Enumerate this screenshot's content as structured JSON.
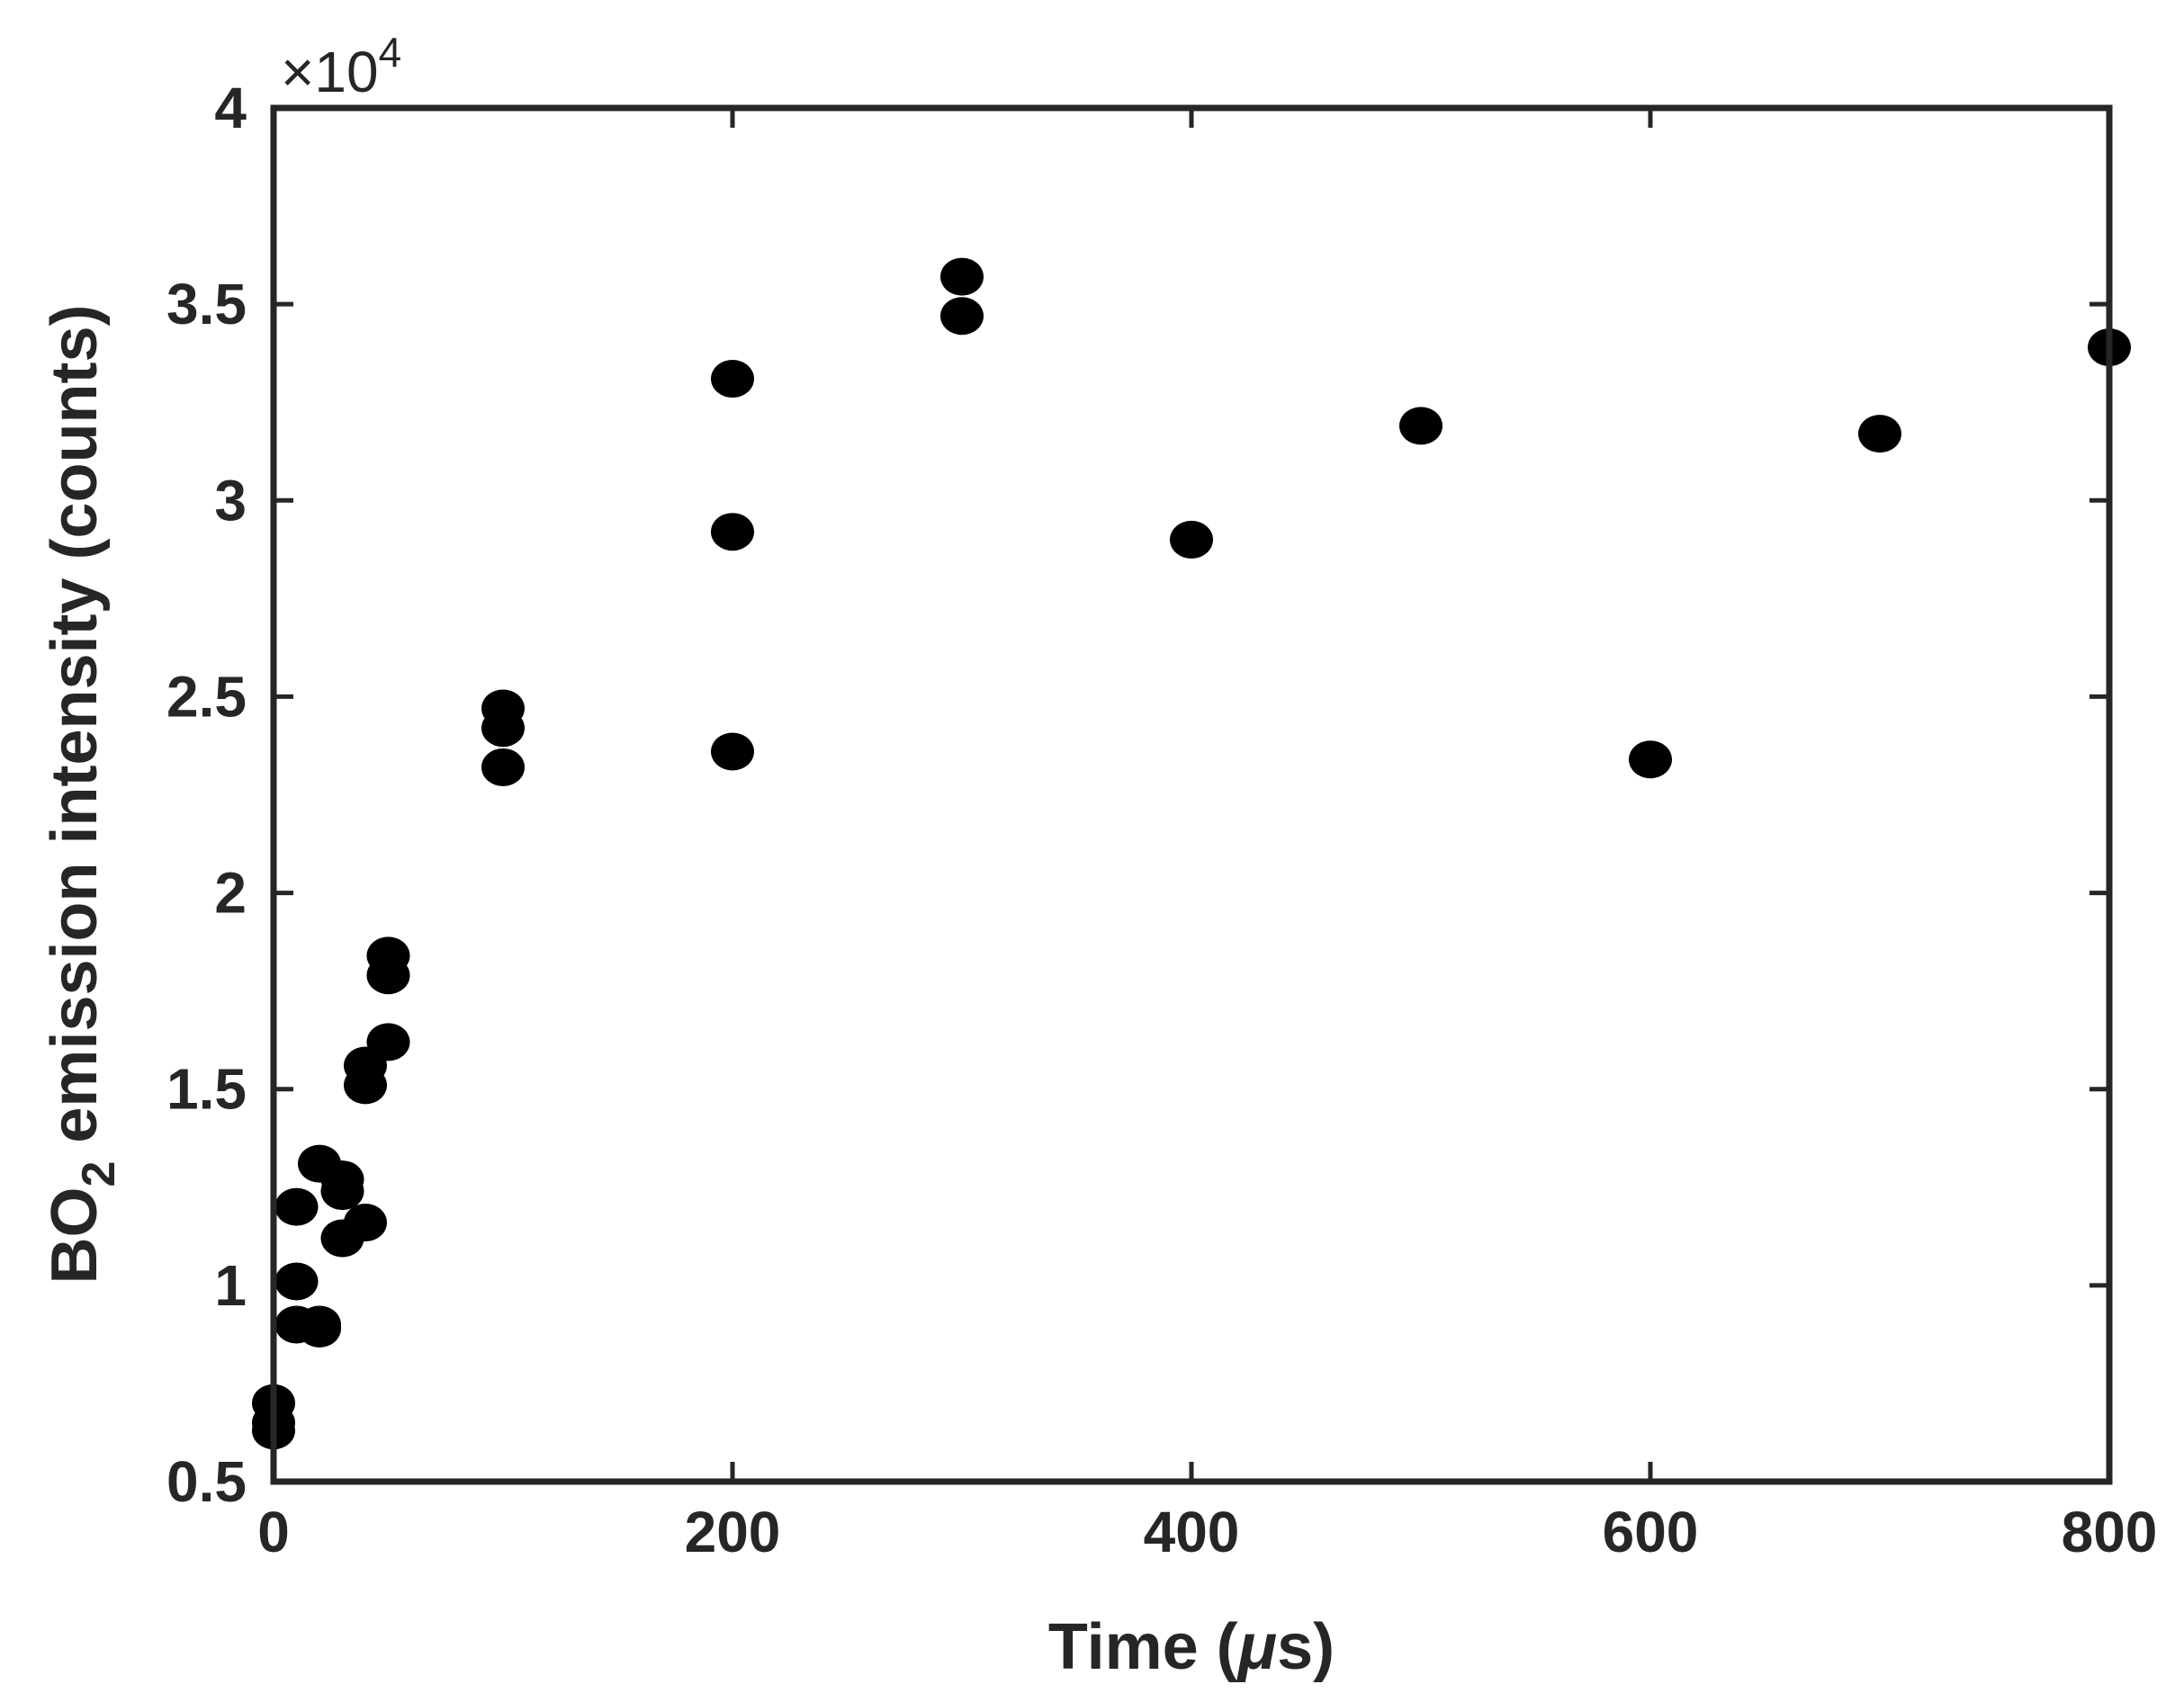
{
  "chart_data": {
    "type": "scatter",
    "xlabel": "Time (",
    "xlabel_unit_symbol": "μ",
    "xlabel_unit_rest": "s)",
    "ylabel_main": "BO",
    "ylabel_sub": "2",
    "ylabel_rest": " emission intensity (counts)",
    "y_exponent_prefix": "×10",
    "y_exponent_power": "4",
    "xlim": [
      0,
      800
    ],
    "ylim": [
      0.5,
      4
    ],
    "xticks": [
      0,
      200,
      400,
      600,
      800
    ],
    "xtick_labels": [
      "0",
      "200",
      "400",
      "600",
      "800"
    ],
    "yticks": [
      0.5,
      1,
      1.5,
      2,
      2.5,
      3,
      3.5,
      4
    ],
    "ytick_labels": [
      "0.5",
      "1",
      "1.5",
      "2",
      "2.5",
      "3",
      "3.5",
      "4"
    ],
    "marker_color": "#000000",
    "axis_color": "#262626",
    "grid": false,
    "points": [
      {
        "x": 0,
        "y": 0.7
      },
      {
        "x": 0,
        "y": 0.65
      },
      {
        "x": 0,
        "y": 0.63
      },
      {
        "x": 10,
        "y": 1.2
      },
      {
        "x": 10,
        "y": 1.01
      },
      {
        "x": 10,
        "y": 0.9
      },
      {
        "x": 20,
        "y": 1.31
      },
      {
        "x": 20,
        "y": 0.9
      },
      {
        "x": 20,
        "y": 0.89
      },
      {
        "x": 30,
        "y": 1.27
      },
      {
        "x": 30,
        "y": 1.24
      },
      {
        "x": 30,
        "y": 1.12
      },
      {
        "x": 40,
        "y": 1.56
      },
      {
        "x": 40,
        "y": 1.51
      },
      {
        "x": 40,
        "y": 1.16
      },
      {
        "x": 50,
        "y": 1.84
      },
      {
        "x": 50,
        "y": 1.79
      },
      {
        "x": 50,
        "y": 1.62
      },
      {
        "x": 100,
        "y": 2.47
      },
      {
        "x": 100,
        "y": 2.42
      },
      {
        "x": 100,
        "y": 2.32
      },
      {
        "x": 200,
        "y": 3.31
      },
      {
        "x": 200,
        "y": 2.92
      },
      {
        "x": 200,
        "y": 2.36
      },
      {
        "x": 300,
        "y": 3.57
      },
      {
        "x": 300,
        "y": 3.47
      },
      {
        "x": 400,
        "y": 2.9
      },
      {
        "x": 500,
        "y": 3.19
      },
      {
        "x": 600,
        "y": 2.34
      },
      {
        "x": 700,
        "y": 3.17
      },
      {
        "x": 800,
        "y": 3.39
      }
    ]
  }
}
